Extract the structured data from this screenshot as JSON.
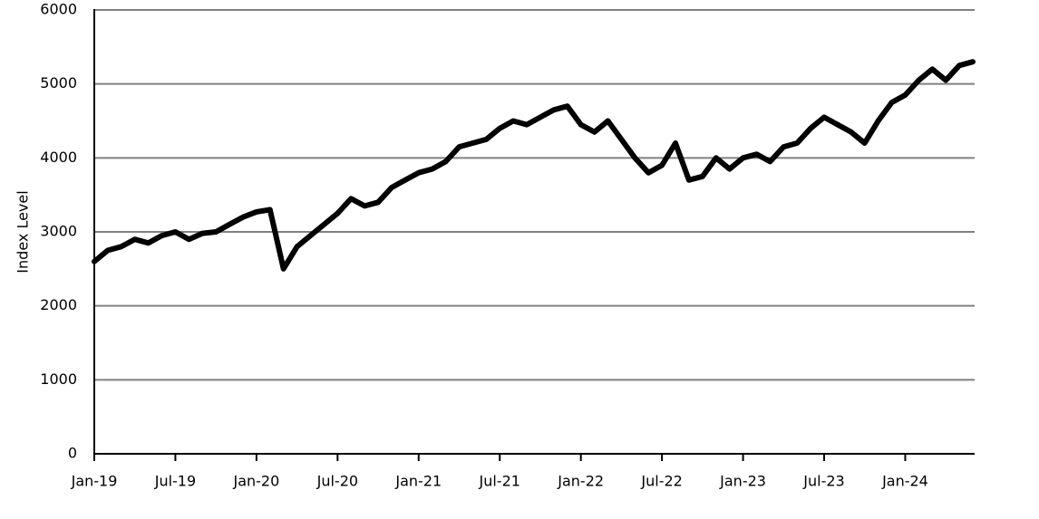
{
  "chart_data": {
    "type": "line",
    "y_label": "Index Level",
    "x": [
      "2019-01",
      "2019-02",
      "2019-03",
      "2019-04",
      "2019-05",
      "2019-06",
      "2019-07",
      "2019-08",
      "2019-09",
      "2019-10",
      "2019-11",
      "2019-12",
      "2020-01",
      "2020-02",
      "2020-03",
      "2020-04",
      "2020-05",
      "2020-06",
      "2020-07",
      "2020-08",
      "2020-09",
      "2020-10",
      "2020-11",
      "2020-12",
      "2021-01",
      "2021-02",
      "2021-03",
      "2021-04",
      "2021-05",
      "2021-06",
      "2021-07",
      "2021-08",
      "2021-09",
      "2021-10",
      "2021-11",
      "2021-12",
      "2022-01",
      "2022-02",
      "2022-03",
      "2022-04",
      "2022-05",
      "2022-06",
      "2022-07",
      "2022-08",
      "2022-09",
      "2022-10",
      "2022-11",
      "2022-12",
      "2023-01",
      "2023-02",
      "2023-03",
      "2023-04",
      "2023-05",
      "2023-06",
      "2023-07",
      "2023-08",
      "2023-09",
      "2023-10",
      "2023-11",
      "2023-12",
      "2024-01",
      "2024-02",
      "2024-03",
      "2024-04",
      "2024-05",
      "2024-06"
    ],
    "series": [
      {
        "name": "Index Level",
        "color": "#000000",
        "values": [
          2600,
          2750,
          2800,
          2900,
          2850,
          2950,
          3000,
          2900,
          2980,
          3000,
          3100,
          3200,
          3270,
          3300,
          2500,
          2800,
          2950,
          3100,
          3250,
          3450,
          3350,
          3400,
          3600,
          3700,
          3800,
          3850,
          3950,
          4150,
          4200,
          4250,
          4400,
          4500,
          4450,
          4550,
          4650,
          4700,
          4450,
          4350,
          4500,
          4250,
          4000,
          3800,
          3900,
          4200,
          3700,
          3750,
          4000,
          3850,
          4000,
          4050,
          3950,
          4150,
          4200,
          4400,
          4550,
          4450,
          4350,
          4200,
          4500,
          4750,
          4850,
          5050,
          5200,
          5050,
          5250,
          5300
        ]
      }
    ],
    "xlim": [
      "2019-01",
      "2024-06"
    ],
    "xticks": [
      {
        "value": "2019-01",
        "label": "Jan-19"
      },
      {
        "value": "2019-07",
        "label": "Jul-19"
      },
      {
        "value": "2020-01",
        "label": "Jan-20"
      },
      {
        "value": "2020-07",
        "label": "Jul-20"
      },
      {
        "value": "2021-01",
        "label": "Jan-21"
      },
      {
        "value": "2021-07",
        "label": "Jul-21"
      },
      {
        "value": "2022-01",
        "label": "Jan-22"
      },
      {
        "value": "2022-07",
        "label": "Jul-22"
      },
      {
        "value": "2023-01",
        "label": "Jan-23"
      },
      {
        "value": "2023-07",
        "label": "Jul-23"
      },
      {
        "value": "2024-01",
        "label": "Jan-24"
      }
    ],
    "ylim": [
      0,
      6000
    ],
    "yticks": [
      0,
      1000,
      2000,
      3000,
      4000,
      5000,
      6000
    ],
    "grid": true
  }
}
